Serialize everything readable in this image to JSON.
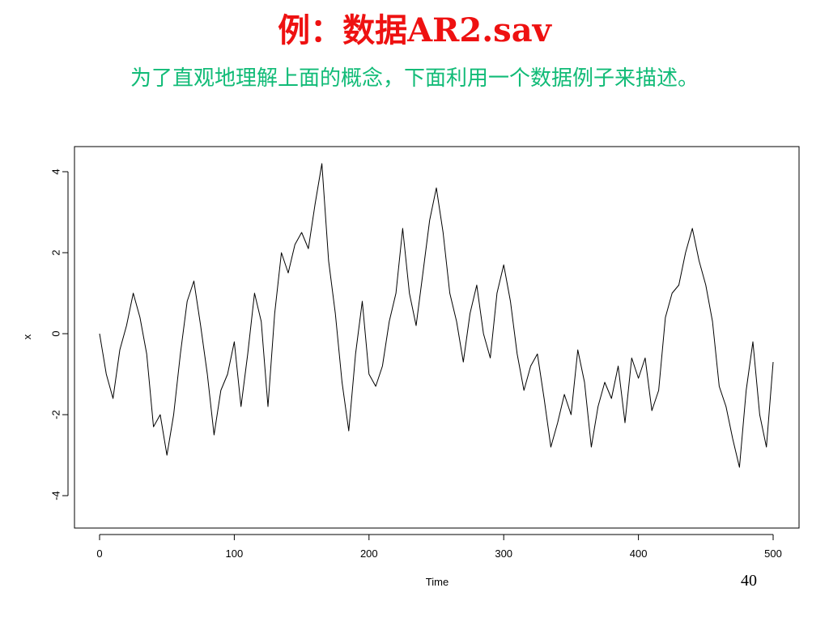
{
  "slide": {
    "title": "例：数据AR2.sav",
    "subtitle": "为了直观地理解上面的概念，下面利用一个数据例子来描述。",
    "page_number": "40",
    "colors": {
      "title": "#ee1111",
      "subtitle": "#11bb77",
      "line": "#000000"
    }
  },
  "chart_data": {
    "type": "line",
    "title": "",
    "xlabel": "Time",
    "ylabel": "x",
    "x_start": 0,
    "x_step": 5,
    "xlim": [
      0,
      500
    ],
    "ylim": [
      -4.5,
      4.3
    ],
    "xticks": [
      0,
      100,
      200,
      300,
      400,
      500
    ],
    "yticks": [
      -4,
      -2,
      0,
      2,
      4
    ],
    "grid": false,
    "legend": "none",
    "values": [
      0,
      -1.0,
      -1.6,
      -0.4,
      0.2,
      1.0,
      0.4,
      -0.5,
      -2.3,
      -2.0,
      -3.0,
      -2.0,
      -0.5,
      0.8,
      1.3,
      0.2,
      -1.0,
      -2.5,
      -1.4,
      -1.0,
      -0.2,
      -1.8,
      -0.5,
      1.0,
      0.3,
      -1.8,
      0.5,
      2.0,
      1.5,
      2.2,
      2.5,
      2.1,
      3.2,
      4.2,
      1.8,
      0.5,
      -1.2,
      -2.4,
      -0.5,
      0.8,
      -1.0,
      -1.3,
      -0.8,
      0.3,
      1.0,
      2.6,
      1.0,
      0.2,
      1.5,
      2.8,
      3.6,
      2.5,
      1.0,
      0.3,
      -0.7,
      0.5,
      1.2,
      0.0,
      -0.6,
      1.0,
      1.7,
      0.8,
      -0.5,
      -1.4,
      -0.8,
      -0.5,
      -1.6,
      -2.8,
      -2.2,
      -1.5,
      -2.0,
      -0.4,
      -1.2,
      -2.8,
      -1.8,
      -1.2,
      -1.6,
      -0.8,
      -2.2,
      -0.6,
      -1.1,
      -0.6,
      -1.9,
      -1.4,
      0.4,
      1.0,
      1.2,
      2.0,
      2.6,
      1.8,
      1.2,
      0.3,
      -1.3,
      -1.8,
      -2.6,
      -3.3,
      -1.4,
      -0.2,
      -2.0,
      -2.8,
      -0.7
    ]
  }
}
